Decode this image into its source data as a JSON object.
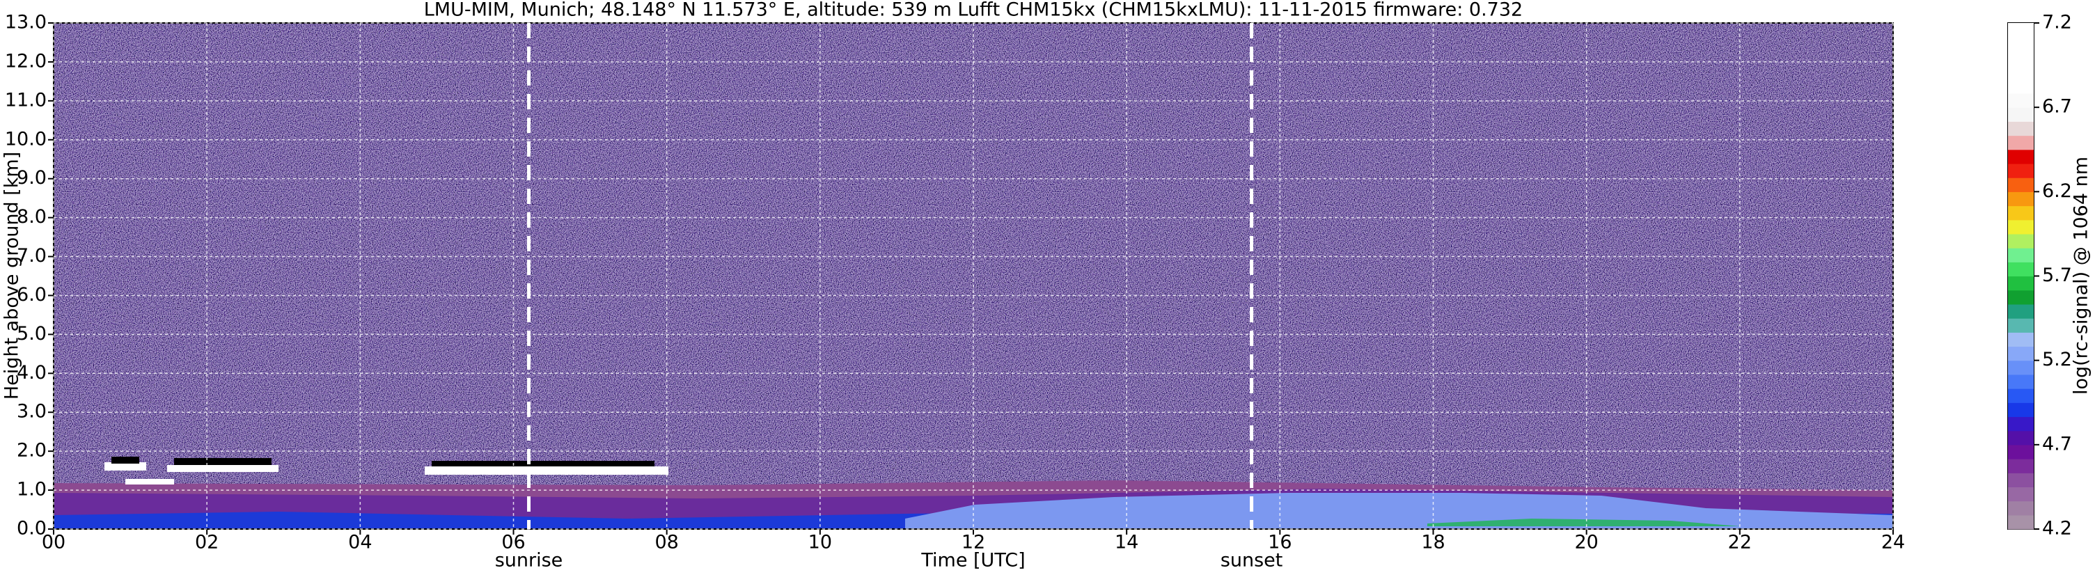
{
  "chart_data": {
    "type": "heatmap",
    "title": "LMU-MIM, Munich; 48.148° N 11.573° E, altitude: 539 m    Lufft CHM15kx (CHM15kxLMU): 11-11-2015     firmware: 0.732",
    "x_label": "Time [UTC]",
    "y_label": "Height above ground [km]",
    "colorbar_label": "log(rc-signal) @ 1064 nm",
    "xlim": [
      0,
      24
    ],
    "xticks": [
      {
        "value": 0,
        "label": "00"
      },
      {
        "value": 2,
        "label": "02"
      },
      {
        "value": 4,
        "label": "04"
      },
      {
        "value": 6,
        "label": "06"
      },
      {
        "value": 8,
        "label": "08"
      },
      {
        "value": 10,
        "label": "10"
      },
      12,
      14,
      16,
      18,
      20,
      22,
      24
    ],
    "ylim": [
      0,
      13
    ],
    "yticks": [
      {
        "value": 0,
        "label": "0.0"
      },
      {
        "value": 1,
        "label": "1.0"
      },
      {
        "value": 2,
        "label": "2.0"
      },
      {
        "value": 3,
        "label": "3.0"
      },
      {
        "value": 4,
        "label": "4.0"
      },
      {
        "value": 5,
        "label": "5.0"
      },
      {
        "value": 6,
        "label": "6.0"
      },
      {
        "value": 7,
        "label": "7.0"
      },
      {
        "value": 8,
        "label": "8.0"
      },
      {
        "value": 9,
        "label": "9.0"
      },
      {
        "value": 10,
        "label": "10.0"
      },
      {
        "value": 11,
        "label": "11.0"
      },
      {
        "value": 12,
        "label": "12.0"
      },
      {
        "value": 13,
        "label": "13.0"
      }
    ],
    "clim": [
      4.2,
      7.2
    ],
    "cticks": [
      4.2,
      4.7,
      5.2,
      5.7,
      6.2,
      6.7,
      7.2
    ],
    "colormap": [
      "#a892a8",
      "#a080a4",
      "#9868a4",
      "#8c50a0",
      "#7c2c9c",
      "#6c109c",
      "#5410a8",
      "#3818c8",
      "#1838e8",
      "#2858f4",
      "#4878f8",
      "#6890f8",
      "#88a8f8",
      "#a0bcf4",
      "#58b8b0",
      "#20a080",
      "#10a030",
      "#20c040",
      "#40e060",
      "#70f090",
      "#b0f060",
      "#f0f030",
      "#f8c818",
      "#f89810",
      "#f86010",
      "#f02010",
      "#e00000",
      "#f0a8a8",
      "#e8d8d8",
      "#f6f6f6",
      "#fafafa",
      "#ffffff",
      "#ffffff",
      "#ffffff",
      "#ffffff",
      "#ffffff"
    ],
    "grid": true,
    "annotations": [
      {
        "x": 6.2,
        "label": "sunrise"
      },
      {
        "x": 15.63,
        "label": "sunset"
      }
    ]
  }
}
